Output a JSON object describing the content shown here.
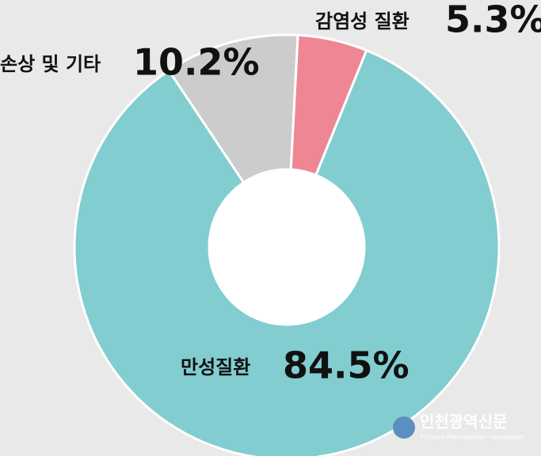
{
  "chart_data": {
    "type": "donut",
    "categories": [
      "감염성 질환",
      "만성질환",
      "손상 및 기타"
    ],
    "values": [
      5.3,
      84.5,
      10.2
    ],
    "value_labels": [
      "5.3%",
      "84.5%",
      "10.2%"
    ],
    "colors": [
      "#ee8793",
      "#82cdd0",
      "#cccccc"
    ]
  },
  "watermark": {
    "title": "인천광역신문",
    "subtitle": "Incheon Metropolitan newspaper"
  }
}
